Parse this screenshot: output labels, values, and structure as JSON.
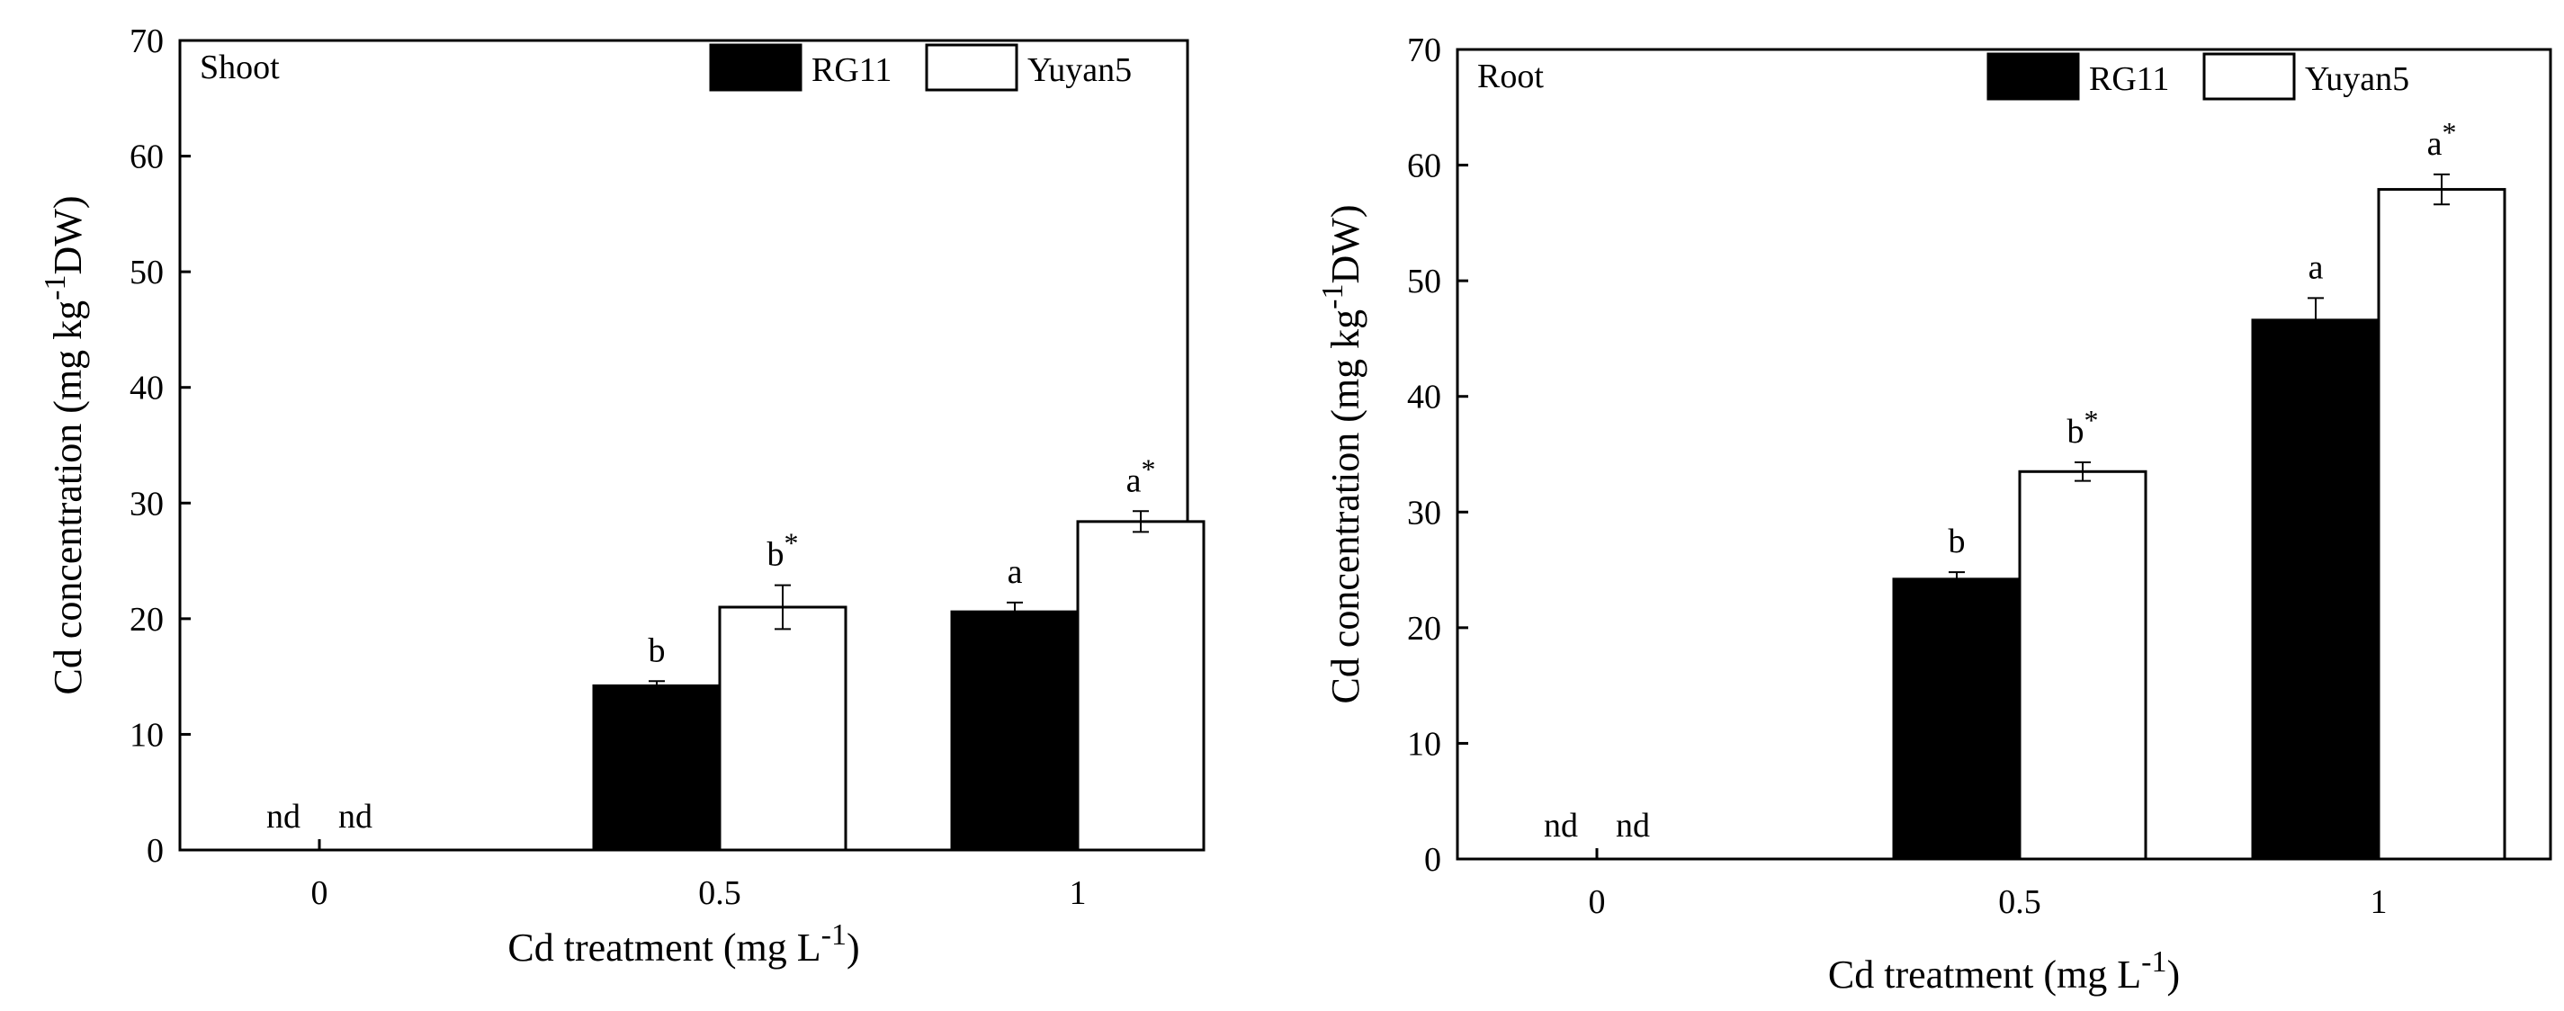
{
  "chart_data": [
    {
      "type": "bar",
      "panel_label": "Shoot",
      "categories": [
        "0",
        "0.5",
        "1"
      ],
      "series": [
        {
          "name": "RG11",
          "color": "#000000",
          "values": [
            0,
            14.2,
            20.6
          ],
          "errors": [
            0,
            0.4,
            0.8
          ],
          "labels": [
            "nd",
            "b",
            "a"
          ]
        },
        {
          "name": "Yuyan5",
          "color": "#ffffff",
          "values": [
            0,
            21.0,
            28.4
          ],
          "errors": [
            0,
            1.9,
            0.9
          ],
          "labels": [
            "nd",
            "b*",
            "a*"
          ]
        }
      ],
      "ylim": [
        0,
        70
      ],
      "yticks": [
        "0",
        "10",
        "20",
        "30",
        "40",
        "50",
        "60",
        "70"
      ],
      "ylabel": {
        "main": "Cd concentration (mg kg",
        "sup": "-1",
        "tail": "DW)"
      },
      "xlabel": {
        "main": "Cd treatment (mg L",
        "sup": "-1",
        "tail": ")"
      }
    },
    {
      "type": "bar",
      "panel_label": "Root",
      "categories": [
        "0",
        "0.5",
        "1"
      ],
      "series": [
        {
          "name": "RG11",
          "color": "#000000",
          "values": [
            0,
            24.2,
            46.6
          ],
          "errors": [
            0,
            0.6,
            1.9
          ],
          "labels": [
            "nd",
            "b",
            "a"
          ]
        },
        {
          "name": "Yuyan5",
          "color": "#ffffff",
          "values": [
            0,
            33.5,
            57.9
          ],
          "errors": [
            0,
            0.8,
            1.3
          ],
          "labels": [
            "nd",
            "b*",
            "a*"
          ]
        }
      ],
      "ylim": [
        0,
        70
      ],
      "yticks": [
        "0",
        "10",
        "20",
        "30",
        "40",
        "50",
        "60",
        "70"
      ],
      "ylabel": {
        "main": "Cd concentration (mg kg",
        "sup": "-1",
        "tail": "DW)"
      },
      "xlabel": {
        "main": "Cd treatment (mg L",
        "sup": "-1",
        "tail": ")"
      }
    }
  ]
}
